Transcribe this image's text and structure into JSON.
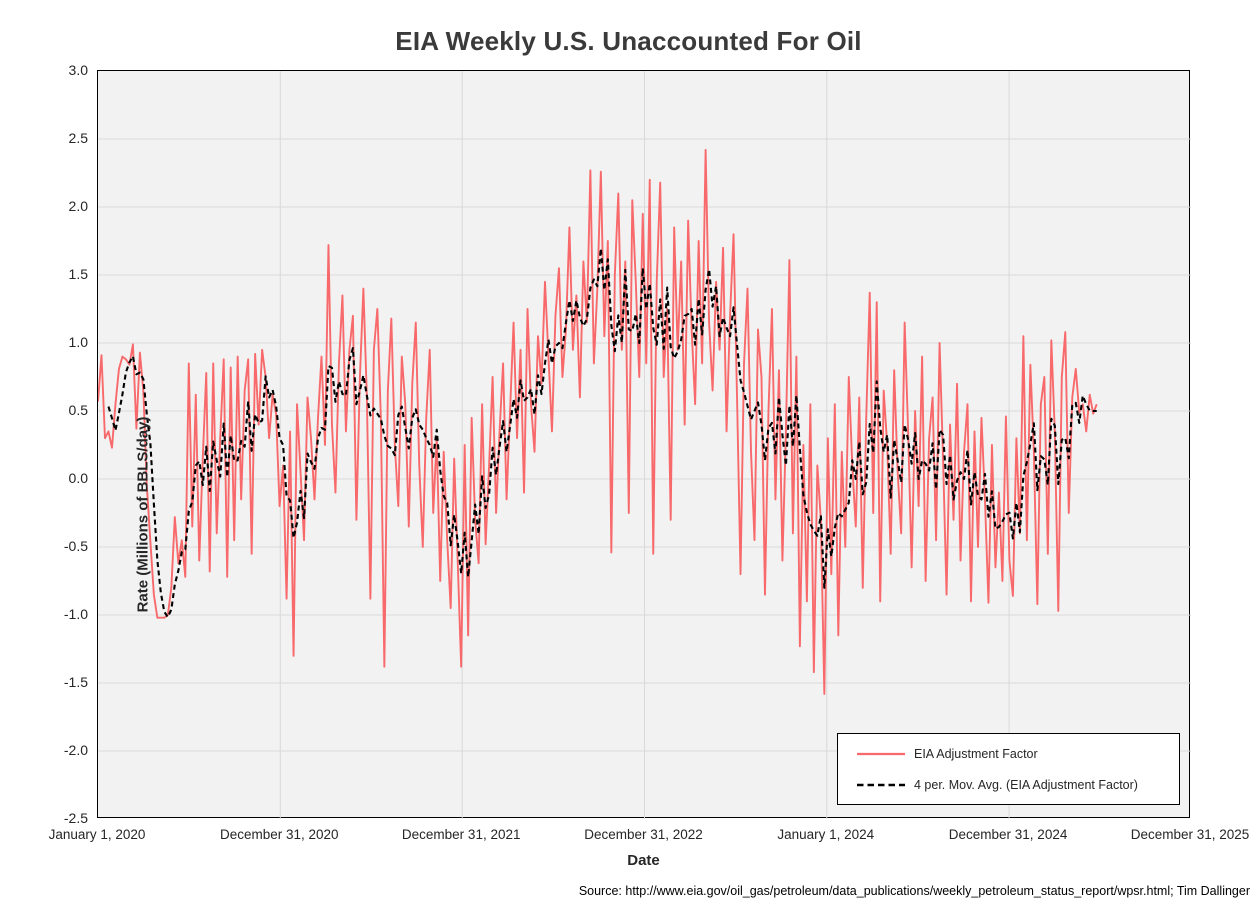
{
  "title": "EIA Weekly U.S. Unaccounted For Oil",
  "source_note": "Source: http://www.eia.gov/oil_gas/petroleum/data_publications/weekly_petroleum_status_report/wpsr.html; Tim Dallinger",
  "colors": {
    "series_red": "#f8696b",
    "ma_black": "#000000",
    "plot_bg": "#f2f2f2",
    "gridline": "#d9d9d9",
    "axis_border": "#000000",
    "title_text": "#3a3a3a"
  },
  "chart_data": {
    "type": "line",
    "title": "EIA Weekly U.S. Unaccounted For Oil",
    "xlabel": "Date",
    "ylabel": "Rate (Millions of BBLS/day)",
    "ylim": [
      -2.5,
      3.0
    ],
    "y_tick_step": 0.5,
    "grid": true,
    "legend_position": "bottom-right-inside",
    "x_axis_total_weeks": 313,
    "x_ticks": [
      {
        "label": "January 1, 2020",
        "week": 0
      },
      {
        "label": "December 31, 2020",
        "week": 52.2
      },
      {
        "label": "December 31, 2021",
        "week": 104.3
      },
      {
        "label": "December 31, 2022",
        "week": 156.5
      },
      {
        "label": "January 1, 2024",
        "week": 208.7
      },
      {
        "label": "December 31, 2024",
        "week": 260.9
      },
      {
        "label": "December 31, 2025",
        "week": 313
      }
    ],
    "y_ticks": [
      {
        "label": "3.0",
        "value": 3.0
      },
      {
        "label": "2.5",
        "value": 2.5
      },
      {
        "label": "2.0",
        "value": 2.0
      },
      {
        "label": "1.5",
        "value": 1.5
      },
      {
        "label": "1.0",
        "value": 1.0
      },
      {
        "label": "0.5",
        "value": 0.5
      },
      {
        "label": "0.0",
        "value": 0.0
      },
      {
        "label": "-0.5",
        "value": -0.5
      },
      {
        "label": "-1.0",
        "value": -1.0
      },
      {
        "label": "-1.5",
        "value": -1.5
      },
      {
        "label": "-2.0",
        "value": -2.0
      },
      {
        "label": "-2.5",
        "value": -2.5
      }
    ],
    "legend": [
      {
        "name": "EIA Adjustment Factor",
        "style": "solid-red"
      },
      {
        "name": "4 per. Mov. Avg. (EIA Adjustment Factor)",
        "style": "dashed-black"
      }
    ],
    "series": [
      {
        "name": "EIA Adjustment Factor",
        "start_week": 0,
        "units": "Millions of BBLS/day",
        "frequency": "weekly",
        "values": [
          0.57,
          0.91,
          0.3,
          0.35,
          0.23,
          0.55,
          0.81,
          0.9,
          0.88,
          0.84,
          0.99,
          0.37,
          0.93,
          0.64,
          -0.06,
          -0.46,
          -0.85,
          -1.02,
          -1.02,
          -1.02,
          -1.0,
          -0.8,
          -0.28,
          -0.62,
          -0.45,
          -0.72,
          0.85,
          -0.35,
          0.62,
          -0.6,
          0.15,
          0.78,
          -0.68,
          0.85,
          -0.4,
          0.3,
          0.88,
          -0.72,
          0.82,
          -0.45,
          0.9,
          -0.15,
          0.65,
          0.88,
          -0.55,
          0.92,
          0.4,
          0.95,
          0.75,
          0.3,
          0.62,
          0.48,
          -0.2,
          0.1,
          -0.88,
          0.35,
          -1.3,
          0.55,
          0.05,
          -0.45,
          0.6,
          0.3,
          -0.15,
          0.45,
          0.9,
          0.25,
          1.72,
          0.4,
          -0.1,
          0.85,
          1.35,
          0.35,
          0.95,
          1.2,
          -0.3,
          0.75,
          1.4,
          0.6,
          -0.88,
          0.95,
          1.25,
          0.45,
          -1.38,
          0.65,
          1.18,
          0.25,
          -0.2,
          0.9,
          0.55,
          -0.35,
          0.7,
          1.15,
          0.1,
          -0.5,
          0.45,
          0.95,
          -0.25,
          0.3,
          -0.75,
          0.2,
          -0.45,
          -0.95,
          0.15,
          -0.6,
          -1.38,
          0.25,
          -1.15,
          0.45,
          -0.3,
          -0.62,
          0.55,
          -0.48,
          0.1,
          0.75,
          -0.25,
          0.35,
          0.85,
          -0.15,
          0.5,
          1.15,
          0.3,
          0.95,
          -0.1,
          1.25,
          0.55,
          0.2,
          1.05,
          0.7,
          1.45,
          0.9,
          0.35,
          1.2,
          1.55,
          0.75,
          1.1,
          1.85,
          0.95,
          1.35,
          0.6,
          1.6,
          1.15,
          2.27,
          0.85,
          1.4,
          2.26,
          1.05,
          1.75,
          -0.54,
          1.5,
          2.1,
          0.95,
          1.6,
          -0.25,
          2.05,
          1.45,
          0.75,
          1.95,
          0.85,
          2.2,
          -0.55,
          1.45,
          2.18,
          0.75,
          1.25,
          -0.3,
          1.85,
          0.95,
          1.6,
          0.4,
          1.9,
          1.1,
          0.55,
          1.75,
          0.85,
          2.42,
          1.15,
          0.65,
          1.45,
          0.95,
          1.7,
          0.35,
          1.2,
          1.8,
          0.6,
          -0.7,
          0.85,
          1.4,
          0.2,
          -0.45,
          1.1,
          0.75,
          -0.85,
          0.5,
          1.25,
          -0.15,
          0.8,
          -0.6,
          0.35,
          1.61,
          -0.4,
          0.9,
          -1.23,
          0.25,
          -0.9,
          0.55,
          -1.42,
          0.1,
          -0.3,
          -1.58,
          0.3,
          -0.7,
          0.55,
          -1.15,
          0.2,
          -0.5,
          0.75,
          0.1,
          -0.35,
          0.6,
          -0.8,
          0.45,
          1.37,
          -0.25,
          1.3,
          -0.9,
          0.65,
          0.25,
          -0.55,
          0.8,
          0.05,
          -0.4,
          1.15,
          0.35,
          -0.65,
          0.5,
          -0.2,
          0.9,
          -0.75,
          0.3,
          0.6,
          -0.45,
          1.0,
          0.15,
          -0.85,
          0.4,
          -0.3,
          0.7,
          -0.6,
          0.2,
          0.55,
          -0.9,
          0.35,
          -0.5,
          0.45,
          -0.15,
          -0.91,
          0.25,
          -0.65,
          -0.1,
          -0.75,
          0.46,
          -0.6,
          -0.86,
          0.3,
          -0.4,
          1.05,
          -0.45,
          0.84,
          0.2,
          -0.92,
          0.55,
          0.75,
          -0.55,
          1.02,
          0.35,
          -0.97,
          0.75,
          1.08,
          -0.25,
          0.6,
          0.81,
          0.49,
          0.55,
          0.35,
          0.62,
          0.48,
          0.55
        ]
      },
      {
        "name": "4 per. Mov. Avg. (EIA Adjustment Factor)",
        "derived": "moving_average",
        "window": 4,
        "of_series": "EIA Adjustment Factor"
      }
    ]
  }
}
